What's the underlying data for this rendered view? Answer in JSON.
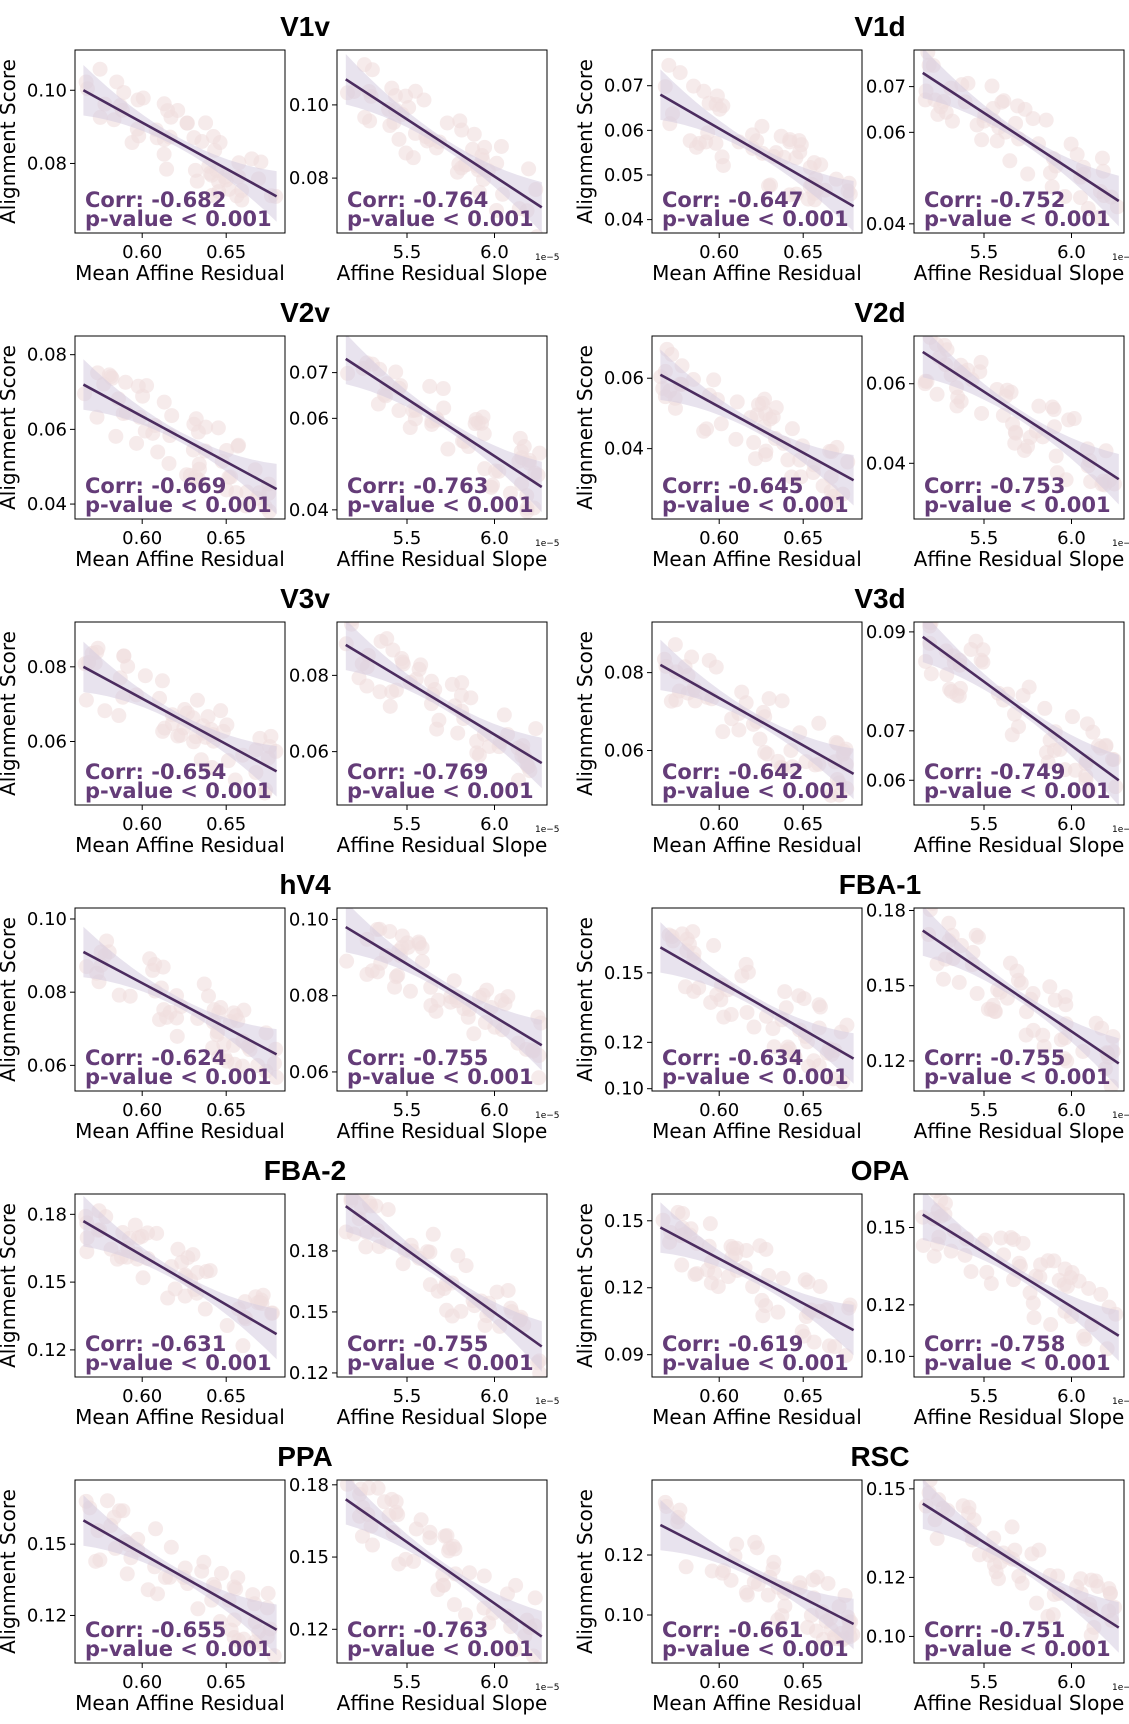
{
  "colors": {
    "line": "#4b2c5f",
    "band": "#d6cce0",
    "points": "#f0dede",
    "stat_text": "#643c78",
    "axis": "#000000"
  },
  "labels": {
    "ylabel": "Alignment Score",
    "xlabel_left": "Mean Affine Residual",
    "xlabel_right": "Affine Residual Slope",
    "corr_prefix": "Corr: ",
    "pvalue_text": "p-value < 0.001",
    "offset_text": "1e−5"
  },
  "chart_data": [
    {
      "type": "scatter",
      "title": "V1v",
      "regions_side": "left",
      "left": {
        "corr": "-0.682",
        "x_ticks": [
          "0.60",
          "0.65"
        ],
        "y_ticks": [
          "0.08",
          "0.10"
        ],
        "xlim": [
          0.56,
          0.685
        ],
        "ylim": [
          0.061,
          0.111
        ],
        "fit": [
          0.565,
          0.1,
          0.68,
          0.071
        ]
      },
      "right": {
        "corr": "-0.764",
        "x_ticks": [
          "5.5",
          "6.0"
        ],
        "y_ticks": [
          "0.08",
          "0.10"
        ],
        "xlim": [
          5.1,
          6.3
        ],
        "ylim": [
          0.065,
          0.115
        ],
        "fit": [
          5.15,
          0.107,
          6.27,
          0.072
        ]
      }
    },
    {
      "type": "scatter",
      "title": "V1d",
      "regions_side": "right",
      "left": {
        "corr": "-0.647",
        "x_ticks": [
          "0.60",
          "0.65"
        ],
        "y_ticks": [
          "0.04",
          "0.05",
          "0.06",
          "0.07"
        ],
        "show_ticks": [
          "0.04",
          "0.06",
          "0.07"
        ],
        "xlim": [
          0.56,
          0.685
        ],
        "ylim": [
          0.037,
          0.078
        ],
        "fit": [
          0.565,
          0.068,
          0.68,
          0.043
        ]
      },
      "right": {
        "corr": "-0.752",
        "x_ticks": [
          "5.5",
          "6.0"
        ],
        "y_ticks": [
          "0.04",
          "0.06",
          "0.07"
        ],
        "xlim": [
          5.1,
          6.3
        ],
        "ylim": [
          0.038,
          0.078
        ],
        "fit": [
          5.15,
          0.073,
          6.27,
          0.045
        ]
      }
    },
    {
      "type": "scatter",
      "title": "V2v",
      "regions_side": "left",
      "left": {
        "corr": "-0.669",
        "x_ticks": [
          "0.60",
          "0.65"
        ],
        "y_ticks": [
          "0.04",
          "0.06",
          "0.08"
        ],
        "xlim": [
          0.56,
          0.685
        ],
        "ylim": [
          0.036,
          0.085
        ],
        "fit": [
          0.565,
          0.072,
          0.68,
          0.044
        ]
      },
      "right": {
        "corr": "-0.763",
        "x_ticks": [
          "5.5",
          "6.0"
        ],
        "y_ticks": [
          "0.04",
          "0.06",
          "0.07"
        ],
        "xlim": [
          5.1,
          6.3
        ],
        "ylim": [
          0.038,
          0.078
        ],
        "fit": [
          5.15,
          0.073,
          6.27,
          0.045
        ]
      }
    },
    {
      "type": "scatter",
      "title": "V2d",
      "regions_side": "right",
      "left": {
        "corr": "-0.645",
        "x_ticks": [
          "0.60",
          "0.65"
        ],
        "y_ticks": [
          "0.04",
          "0.06"
        ],
        "xlim": [
          0.56,
          0.685
        ],
        "ylim": [
          0.02,
          0.072
        ],
        "fit": [
          0.565,
          0.061,
          0.68,
          0.031
        ]
      },
      "right": {
        "corr": "-0.753",
        "x_ticks": [
          "5.5",
          "6.0"
        ],
        "y_ticks": [
          "0.04",
          "0.06"
        ],
        "xlim": [
          5.1,
          6.3
        ],
        "ylim": [
          0.026,
          0.072
        ],
        "fit": [
          5.15,
          0.068,
          6.27,
          0.036
        ]
      }
    },
    {
      "type": "scatter",
      "title": "V3v",
      "regions_side": "left",
      "left": {
        "corr": "-0.654",
        "x_ticks": [
          "0.60",
          "0.65"
        ],
        "y_ticks": [
          "0.06",
          "0.08"
        ],
        "xlim": [
          0.56,
          0.685
        ],
        "ylim": [
          0.043,
          0.092
        ],
        "fit": [
          0.565,
          0.08,
          0.68,
          0.052
        ]
      },
      "right": {
        "corr": "-0.769",
        "x_ticks": [
          "5.5",
          "6.0"
        ],
        "y_ticks": [
          "0.06",
          "0.08"
        ],
        "xlim": [
          5.1,
          6.3
        ],
        "ylim": [
          0.046,
          0.094
        ],
        "fit": [
          5.15,
          0.088,
          6.27,
          0.057
        ]
      }
    },
    {
      "type": "scatter",
      "title": "V3d",
      "regions_side": "right",
      "left": {
        "corr": "-0.642",
        "x_ticks": [
          "0.60",
          "0.65"
        ],
        "y_ticks": [
          "0.06",
          "0.08"
        ],
        "xlim": [
          0.56,
          0.685
        ],
        "ylim": [
          0.046,
          0.093
        ],
        "fit": [
          0.565,
          0.082,
          0.68,
          0.054
        ]
      },
      "right": {
        "corr": "-0.749",
        "x_ticks": [
          "5.5",
          "6.0"
        ],
        "y_ticks": [
          "0.06",
          "0.07",
          "0.09"
        ],
        "xlim": [
          5.1,
          6.3
        ],
        "ylim": [
          0.055,
          0.092
        ],
        "fit": [
          5.15,
          0.089,
          6.27,
          0.06
        ]
      }
    },
    {
      "type": "scatter",
      "title": "hV4",
      "regions_side": "left",
      "left": {
        "corr": "-0.624",
        "x_ticks": [
          "0.60",
          "0.65"
        ],
        "y_ticks": [
          "0.06",
          "0.08",
          "0.10"
        ],
        "xlim": [
          0.56,
          0.685
        ],
        "ylim": [
          0.053,
          0.103
        ],
        "fit": [
          0.565,
          0.091,
          0.68,
          0.063
        ]
      },
      "right": {
        "corr": "-0.755",
        "x_ticks": [
          "5.5",
          "6.0"
        ],
        "y_ticks": [
          "0.06",
          "0.08",
          "0.10"
        ],
        "xlim": [
          5.1,
          6.3
        ],
        "ylim": [
          0.055,
          0.103
        ],
        "fit": [
          5.15,
          0.098,
          6.27,
          0.067
        ]
      }
    },
    {
      "type": "scatter",
      "title": "FBA-1",
      "regions_side": "right",
      "left": {
        "corr": "-0.634",
        "x_ticks": [
          "0.60",
          "0.65"
        ],
        "y_ticks": [
          "0.10",
          "0.12",
          "0.15"
        ],
        "xlim": [
          0.56,
          0.685
        ],
        "ylim": [
          0.099,
          0.178
        ],
        "fit": [
          0.565,
          0.161,
          0.68,
          0.113
        ]
      },
      "right": {
        "corr": "-0.755",
        "x_ticks": [
          "5.5",
          "6.0"
        ],
        "y_ticks": [
          "0.12",
          "0.15",
          "0.18"
        ],
        "xlim": [
          5.1,
          6.3
        ],
        "ylim": [
          0.108,
          0.181
        ],
        "fit": [
          5.15,
          0.172,
          6.27,
          0.119
        ]
      }
    },
    {
      "type": "scatter",
      "title": "FBA-2",
      "regions_side": "left",
      "left": {
        "corr": "-0.631",
        "x_ticks": [
          "0.60",
          "0.65"
        ],
        "y_ticks": [
          "0.12",
          "0.15",
          "0.18"
        ],
        "xlim": [
          0.56,
          0.685
        ],
        "ylim": [
          0.108,
          0.189
        ],
        "fit": [
          0.565,
          0.177,
          0.68,
          0.127
        ]
      },
      "right": {
        "corr": "-0.755",
        "x_ticks": [
          "5.5",
          "6.0"
        ],
        "y_ticks": [
          "0.12",
          "0.15",
          "0.18"
        ],
        "xlim": [
          5.1,
          6.3
        ],
        "ylim": [
          0.118,
          0.208
        ],
        "fit": [
          5.15,
          0.202,
          6.27,
          0.133
        ]
      }
    },
    {
      "type": "scatter",
      "title": "OPA",
      "regions_side": "right",
      "left": {
        "corr": "-0.619",
        "x_ticks": [
          "0.60",
          "0.65"
        ],
        "y_ticks": [
          "0.09",
          "0.12",
          "0.15"
        ],
        "xlim": [
          0.56,
          0.685
        ],
        "ylim": [
          0.08,
          0.162
        ],
        "fit": [
          0.565,
          0.147,
          0.68,
          0.101
        ]
      },
      "right": {
        "corr": "-0.758",
        "x_ticks": [
          "5.5",
          "6.0"
        ],
        "y_ticks": [
          "0.10",
          "0.12",
          "0.15"
        ],
        "xlim": [
          5.1,
          6.3
        ],
        "ylim": [
          0.092,
          0.163
        ],
        "fit": [
          5.15,
          0.155,
          6.27,
          0.108
        ]
      }
    },
    {
      "type": "scatter",
      "title": "PPA",
      "regions_side": "left",
      "left": {
        "corr": "-0.655",
        "x_ticks": [
          "0.60",
          "0.65"
        ],
        "y_ticks": [
          "0.12",
          "0.15"
        ],
        "xlim": [
          0.56,
          0.685
        ],
        "ylim": [
          0.1,
          0.177
        ],
        "fit": [
          0.565,
          0.16,
          0.68,
          0.114
        ]
      },
      "right": {
        "corr": "-0.763",
        "x_ticks": [
          "5.5",
          "6.0"
        ],
        "y_ticks": [
          "0.12",
          "0.15",
          "0.18"
        ],
        "xlim": [
          5.1,
          6.3
        ],
        "ylim": [
          0.106,
          0.182
        ],
        "fit": [
          5.15,
          0.174,
          6.27,
          0.117
        ]
      }
    },
    {
      "type": "scatter",
      "title": "RSC",
      "regions_side": "right",
      "left": {
        "corr": "-0.661",
        "x_ticks": [
          "0.60",
          "0.65"
        ],
        "y_ticks": [
          "0.10",
          "0.12"
        ],
        "xlim": [
          0.56,
          0.685
        ],
        "ylim": [
          0.084,
          0.145
        ],
        "fit": [
          0.565,
          0.13,
          0.68,
          0.097
        ]
      },
      "right": {
        "corr": "-0.751",
        "x_ticks": [
          "5.5",
          "6.0"
        ],
        "y_ticks": [
          "0.10",
          "0.12",
          "0.15"
        ],
        "xlim": [
          5.1,
          6.3
        ],
        "ylim": [
          0.091,
          0.153
        ],
        "fit": [
          5.15,
          0.145,
          6.27,
          0.103
        ]
      }
    }
  ]
}
